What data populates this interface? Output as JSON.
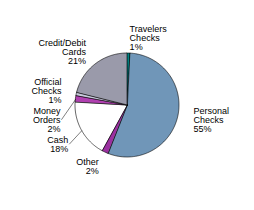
{
  "chart_data": {
    "type": "pie",
    "categories": [
      "Travelers\nChecks\n1%",
      "Personal\nChecks\n55%",
      "Other\n2%",
      "Cash\n18%",
      "Money\nOrders\n2%",
      "Official\nChecks\n1%",
      "Credit/Debit\nCards\n21%"
    ],
    "values": [
      1,
      55,
      2,
      18,
      2,
      1,
      21
    ],
    "colors": [
      "#008080",
      "#7096B8",
      "#9B30A0",
      "#FFFFFF",
      "#B040B0",
      "#C8CADC",
      "#9A9AAA"
    ]
  }
}
